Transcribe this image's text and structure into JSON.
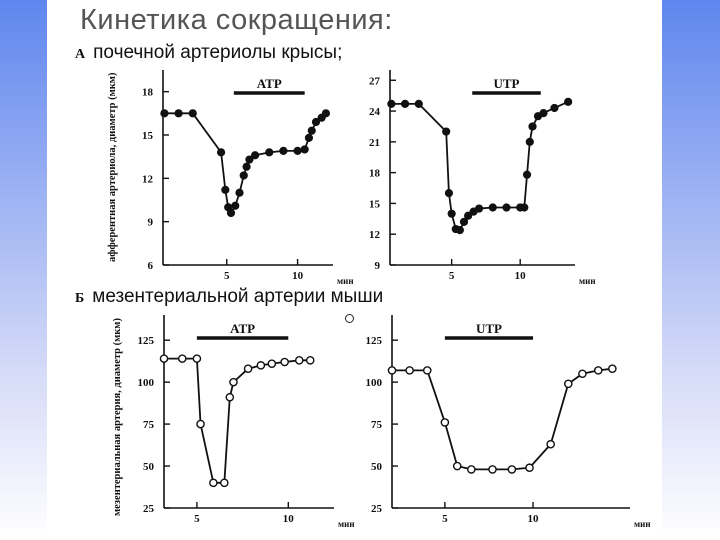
{
  "title": "Кинетика сокращения:",
  "section_a": {
    "letter": "А",
    "label": "почечной артериолы крысы;",
    "ylabel": "афферентная артериола, диаметр (мкм)"
  },
  "section_b": {
    "letter": "Б",
    "label": "мезентериальной артерии мыши",
    "ylabel": "мезентериальная артерия, диаметр (мкм)"
  },
  "colors": {
    "background_left": "#5b86f0",
    "slide": "#ffffff",
    "ink": "#111111",
    "title": "#555555"
  },
  "chart_data": [
    {
      "id": "A-ATP",
      "type": "line",
      "marker": "filled-circle",
      "treatment": "ATP",
      "treatment_bar": [
        5.5,
        10.5
      ],
      "xlabel": "мин",
      "xlim": [
        0.5,
        12.5
      ],
      "xticks": [
        5,
        10
      ],
      "ylim": [
        6,
        19.5
      ],
      "yticks": [
        6,
        9,
        12,
        15,
        18
      ],
      "x": [
        0.6,
        1.6,
        2.6,
        4.6,
        4.9,
        5.1,
        5.3,
        5.6,
        5.9,
        6.2,
        6.4,
        6.6,
        7.0,
        8.0,
        9.0,
        10.0,
        10.5,
        10.8,
        11.0,
        11.3,
        11.7,
        12.0
      ],
      "y": [
        16.5,
        16.5,
        16.5,
        13.8,
        11.2,
        10.0,
        9.6,
        10.1,
        11.0,
        12.2,
        12.8,
        13.3,
        13.6,
        13.8,
        13.9,
        13.9,
        14.0,
        14.8,
        15.3,
        15.9,
        16.2,
        16.5
      ]
    },
    {
      "id": "A-UTP",
      "type": "line",
      "marker": "filled-circle",
      "treatment": "UTP",
      "treatment_bar": [
        6.5,
        11.5
      ],
      "xlabel": "мин",
      "xlim": [
        0.5,
        14
      ],
      "xticks": [
        5,
        10
      ],
      "ylim": [
        9,
        28
      ],
      "yticks": [
        9,
        12,
        15,
        18,
        21,
        24,
        27
      ],
      "x": [
        0.6,
        1.6,
        2.6,
        4.6,
        4.8,
        5.0,
        5.3,
        5.6,
        5.9,
        6.2,
        6.6,
        7.0,
        8.0,
        9.0,
        10.0,
        10.3,
        10.5,
        10.7,
        10.9,
        11.3,
        11.7,
        12.5,
        13.5
      ],
      "y": [
        24.7,
        24.7,
        24.7,
        22.0,
        16.0,
        14.0,
        12.5,
        12.4,
        13.2,
        13.8,
        14.2,
        14.5,
        14.6,
        14.6,
        14.6,
        14.6,
        17.8,
        21.0,
        22.5,
        23.5,
        23.8,
        24.3,
        24.9
      ]
    },
    {
      "id": "B-ATP",
      "type": "line",
      "marker": "open-circle",
      "treatment": "ATP",
      "treatment_bar": [
        5.0,
        10.0
      ],
      "xlabel": "мин",
      "xlim": [
        3.2,
        12.5
      ],
      "xticks": [
        5,
        10
      ],
      "ylim": [
        25,
        140
      ],
      "yticks": [
        25,
        50,
        75,
        100,
        125
      ],
      "x": [
        3.2,
        4.2,
        5.0,
        5.2,
        5.9,
        6.5,
        6.8,
        7.0,
        7.8,
        8.5,
        9.1,
        9.8,
        10.6,
        11.2
      ],
      "y": [
        114,
        114,
        114,
        75,
        40,
        40,
        91,
        100,
        108,
        110,
        111,
        112,
        113,
        113
      ]
    },
    {
      "id": "B-UTP",
      "type": "line",
      "marker": "open-circle",
      "treatment": "UTP",
      "treatment_bar": [
        5.0,
        10.0
      ],
      "xlabel": "мин",
      "xlim": [
        2.0,
        15.5
      ],
      "xticks": [
        5,
        10
      ],
      "ylim": [
        25,
        140
      ],
      "yticks": [
        25,
        50,
        75,
        100,
        125
      ],
      "x": [
        2.0,
        3.0,
        4.0,
        5.0,
        5.7,
        6.5,
        7.7,
        8.8,
        9.8,
        11.0,
        12.0,
        12.8,
        13.7,
        14.5
      ],
      "y": [
        107,
        107,
        107,
        76,
        50,
        48,
        48,
        48,
        49,
        63,
        99,
        105,
        107,
        108
      ]
    }
  ]
}
